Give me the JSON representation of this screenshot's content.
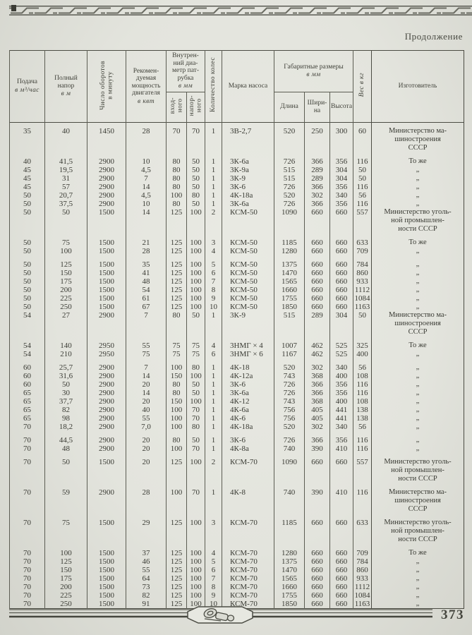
{
  "page": {
    "continuation": "Продолжение",
    "page_number": "373"
  },
  "colors": {
    "paper": "#e3e4dd",
    "ink": "#3a3b34",
    "rule": "#56574f"
  },
  "icons": {
    "top_border": "braided-rule",
    "footer_emblem": "pump-vignette"
  },
  "table": {
    "header": {
      "supply_title": "Подача",
      "supply_unit": "в м³/час",
      "head_title": "Полный\nнапор",
      "head_unit": "в м",
      "rpm": "Число оборотов\nв минуту",
      "power_title": "Рекомен-\nдуемая\nмощность\nдвигателя",
      "power_unit": "в квт",
      "nozzle_title": "Внутрен-\nний диа-\nметр пат-\nрубка",
      "nozzle_unit": "в мм",
      "inlet": "вход-\nного",
      "outlet": "напор-\nного",
      "wheels": "Количество колес",
      "brand": "Марка насоса",
      "dims_title": "Габаритные размеры",
      "dims_unit": "в мм",
      "length": "Длина",
      "width": "Шири-\nна",
      "height": "Высота",
      "weight": "Вес в кг",
      "manufacturer": "Изготовитель"
    },
    "rows": [
      {
        "cells": [
          "35",
          "40",
          "1450",
          "28",
          "70",
          "70",
          "1",
          "3В-2,7",
          "520",
          "250",
          "300",
          "60"
        ],
        "maker": "Министерство ма-\nшиностроения\nСССР",
        "gap": false
      },
      {
        "cells": [
          "40",
          "41,5",
          "2900",
          "10",
          "80",
          "50",
          "1",
          "3К-6а",
          "726",
          "366",
          "356",
          "116"
        ],
        "maker": "То же",
        "gap": true
      },
      {
        "cells": [
          "45",
          "19,5",
          "2900",
          "4,5",
          "80",
          "50",
          "1",
          "3К-9а",
          "515",
          "289",
          "304",
          "50"
        ],
        "maker": "„",
        "gap": false
      },
      {
        "cells": [
          "45",
          "31",
          "2900",
          "7",
          "80",
          "50",
          "1",
          "3К-9",
          "515",
          "289",
          "304",
          "50"
        ],
        "maker": "„",
        "gap": false
      },
      {
        "cells": [
          "45",
          "57",
          "2900",
          "14",
          "80",
          "50",
          "1",
          "3К-6",
          "726",
          "366",
          "356",
          "116"
        ],
        "maker": "„",
        "gap": false
      },
      {
        "cells": [
          "50",
          "20,7",
          "2900",
          "4,5",
          "100",
          "80",
          "1",
          "4К-18а",
          "520",
          "302",
          "340",
          "56"
        ],
        "maker": "„",
        "gap": false
      },
      {
        "cells": [
          "50",
          "37,5",
          "2900",
          "10",
          "80",
          "50",
          "1",
          "3К-6а",
          "726",
          "366",
          "356",
          "116"
        ],
        "maker": "„",
        "gap": false
      },
      {
        "cells": [
          "50",
          "50",
          "1500",
          "14",
          "125",
          "100",
          "2",
          "КСМ-50",
          "1090",
          "660",
          "660",
          "557"
        ],
        "maker": "Министерство уголь-\nной промышлен-\nности СССР",
        "gap": false
      },
      {
        "cells": [
          "50",
          "75",
          "1500",
          "21",
          "125",
          "100",
          "3",
          "КСМ-50",
          "1185",
          "660",
          "660",
          "633"
        ],
        "maker": "То же",
        "gap": true
      },
      {
        "cells": [
          "50",
          "100",
          "1500",
          "28",
          "125",
          "100",
          "4",
          "КСМ-50",
          "1280",
          "660",
          "660",
          "709"
        ],
        "maker": "„",
        "gap": false
      },
      {
        "cells": [
          "50",
          "125",
          "1500",
          "35",
          "125",
          "100",
          "5",
          "КСМ-50",
          "1375",
          "660",
          "660",
          "784"
        ],
        "maker": "„",
        "gap": true
      },
      {
        "cells": [
          "50",
          "150",
          "1500",
          "41",
          "125",
          "100",
          "6",
          "КСМ-50",
          "1470",
          "660",
          "660",
          "860"
        ],
        "maker": "„",
        "gap": false
      },
      {
        "cells": [
          "50",
          "175",
          "1500",
          "48",
          "125",
          "100",
          "7",
          "КСМ-50",
          "1565",
          "660",
          "660",
          "933"
        ],
        "maker": "„",
        "gap": false
      },
      {
        "cells": [
          "50",
          "200",
          "1500",
          "54",
          "125",
          "100",
          "8",
          "КСМ-50",
          "1660",
          "660",
          "660",
          "1112"
        ],
        "maker": "„",
        "gap": false
      },
      {
        "cells": [
          "50",
          "225",
          "1500",
          "61",
          "125",
          "100",
          "9",
          "КСМ-50",
          "1755",
          "660",
          "660",
          "1084"
        ],
        "maker": "„",
        "gap": false
      },
      {
        "cells": [
          "50",
          "250",
          "1500",
          "67",
          "125",
          "100",
          "10",
          "КСМ-50",
          "1850",
          "660",
          "660",
          "1163"
        ],
        "maker": "„",
        "gap": false
      },
      {
        "cells": [
          "54",
          "27",
          "2900",
          "7",
          "80",
          "50",
          "1",
          "3К-9",
          "515",
          "289",
          "304",
          "50"
        ],
        "maker": "Министерство ма-\nшиностроения\nСССР",
        "gap": false
      },
      {
        "cells": [
          "54",
          "140",
          "2950",
          "55",
          "75",
          "75",
          "4",
          "3НМГ × 4",
          "1007",
          "462",
          "525",
          "325"
        ],
        "maker": "То же",
        "gap": true
      },
      {
        "cells": [
          "54",
          "210",
          "2950",
          "75",
          "75",
          "75",
          "6",
          "3НМГ × 6",
          "1167",
          "462",
          "525",
          "400"
        ],
        "maker": "„",
        "gap": false
      },
      {
        "cells": [
          "60",
          "25,7",
          "2900",
          "7",
          "100",
          "80",
          "1",
          "4К-18",
          "520",
          "302",
          "340",
          "56"
        ],
        "maker": "„",
        "gap": true
      },
      {
        "cells": [
          "60",
          "31,6",
          "2900",
          "14",
          "150",
          "100",
          "1",
          "4К-12а",
          "743",
          "368",
          "400",
          "108"
        ],
        "maker": "„",
        "gap": false
      },
      {
        "cells": [
          "60",
          "50",
          "2900",
          "20",
          "80",
          "50",
          "1",
          "3К-6",
          "726",
          "366",
          "356",
          "116"
        ],
        "maker": "„",
        "gap": false
      },
      {
        "cells": [
          "65",
          "30",
          "2900",
          "14",
          "80",
          "50",
          "1",
          "3К-6а",
          "726",
          "366",
          "356",
          "116"
        ],
        "maker": "„",
        "gap": false
      },
      {
        "cells": [
          "65",
          "37,7",
          "2900",
          "20",
          "150",
          "100",
          "1",
          "4К-12",
          "743",
          "368",
          "400",
          "108"
        ],
        "maker": "„",
        "gap": false
      },
      {
        "cells": [
          "65",
          "82",
          "2900",
          "40",
          "100",
          "70",
          "1",
          "4К-6а",
          "756",
          "405",
          "441",
          "138"
        ],
        "maker": "„",
        "gap": false
      },
      {
        "cells": [
          "65",
          "98",
          "2900",
          "55",
          "100",
          "70",
          "1",
          "4К-6",
          "756",
          "405",
          "441",
          "138"
        ],
        "maker": "„",
        "gap": false
      },
      {
        "cells": [
          "70",
          "18,2",
          "2900",
          "7,0",
          "100",
          "80",
          "1",
          "4К-18а",
          "520",
          "302",
          "340",
          "56"
        ],
        "maker": "„",
        "gap": false
      },
      {
        "cells": [
          "70",
          "44,5",
          "2900",
          "20",
          "80",
          "50",
          "1",
          "3К-6",
          "726",
          "366",
          "356",
          "116"
        ],
        "maker": "„",
        "gap": true
      },
      {
        "cells": [
          "70",
          "48",
          "2900",
          "20",
          "100",
          "70",
          "1",
          "4К-8а",
          "740",
          "390",
          "410",
          "116"
        ],
        "maker": "„",
        "gap": false
      },
      {
        "cells": [
          "70",
          "50",
          "1500",
          "20",
          "125",
          "100",
          "2",
          "КСМ-70",
          "1090",
          "660",
          "660",
          "557"
        ],
        "maker": "Министерство уголь-\nной промышлен-\nности СССР",
        "gap": true
      },
      {
        "cells": [
          "70",
          "59",
          "2900",
          "28",
          "100",
          "70",
          "1",
          "4К-8",
          "740",
          "390",
          "410",
          "116"
        ],
        "maker": "Министерство ма-\nшиностроения\nСССР",
        "gap": true
      },
      {
        "cells": [
          "70",
          "75",
          "1500",
          "29",
          "125",
          "100",
          "3",
          "КСМ-70",
          "1185",
          "660",
          "660",
          "633"
        ],
        "maker": "Министерство уголь-\nной промышлен-\nности СССР",
        "gap": true
      },
      {
        "cells": [
          "70",
          "100",
          "1500",
          "37",
          "125",
          "100",
          "4",
          "КСМ-70",
          "1280",
          "660",
          "660",
          "709"
        ],
        "maker": "То же",
        "gap": true
      },
      {
        "cells": [
          "70",
          "125",
          "1500",
          "46",
          "125",
          "100",
          "5",
          "КСМ-70",
          "1375",
          "660",
          "660",
          "784"
        ],
        "maker": "„",
        "gap": false
      },
      {
        "cells": [
          "70",
          "150",
          "1500",
          "55",
          "125",
          "100",
          "6",
          "КСМ-70",
          "1470",
          "660",
          "660",
          "860"
        ],
        "maker": "„",
        "gap": false
      },
      {
        "cells": [
          "70",
          "175",
          "1500",
          "64",
          "125",
          "100",
          "7",
          "КСМ-70",
          "1565",
          "660",
          "660",
          "933"
        ],
        "maker": "„",
        "gap": false
      },
      {
        "cells": [
          "70",
          "200",
          "1500",
          "73",
          "125",
          "100",
          "8",
          "КСМ-70",
          "1660",
          "660",
          "660",
          "1112"
        ],
        "maker": "„",
        "gap": false
      },
      {
        "cells": [
          "70",
          "225",
          "1500",
          "82",
          "125",
          "100",
          "9",
          "КСМ-70",
          "1755",
          "660",
          "660",
          "1084"
        ],
        "maker": "„",
        "gap": false
      },
      {
        "cells": [
          "70",
          "250",
          "1500",
          "91",
          "125",
          "100",
          "10",
          "КСМ-70",
          "1850",
          "660",
          "660",
          "1163"
        ],
        "maker": "„",
        "gap": false
      }
    ]
  }
}
